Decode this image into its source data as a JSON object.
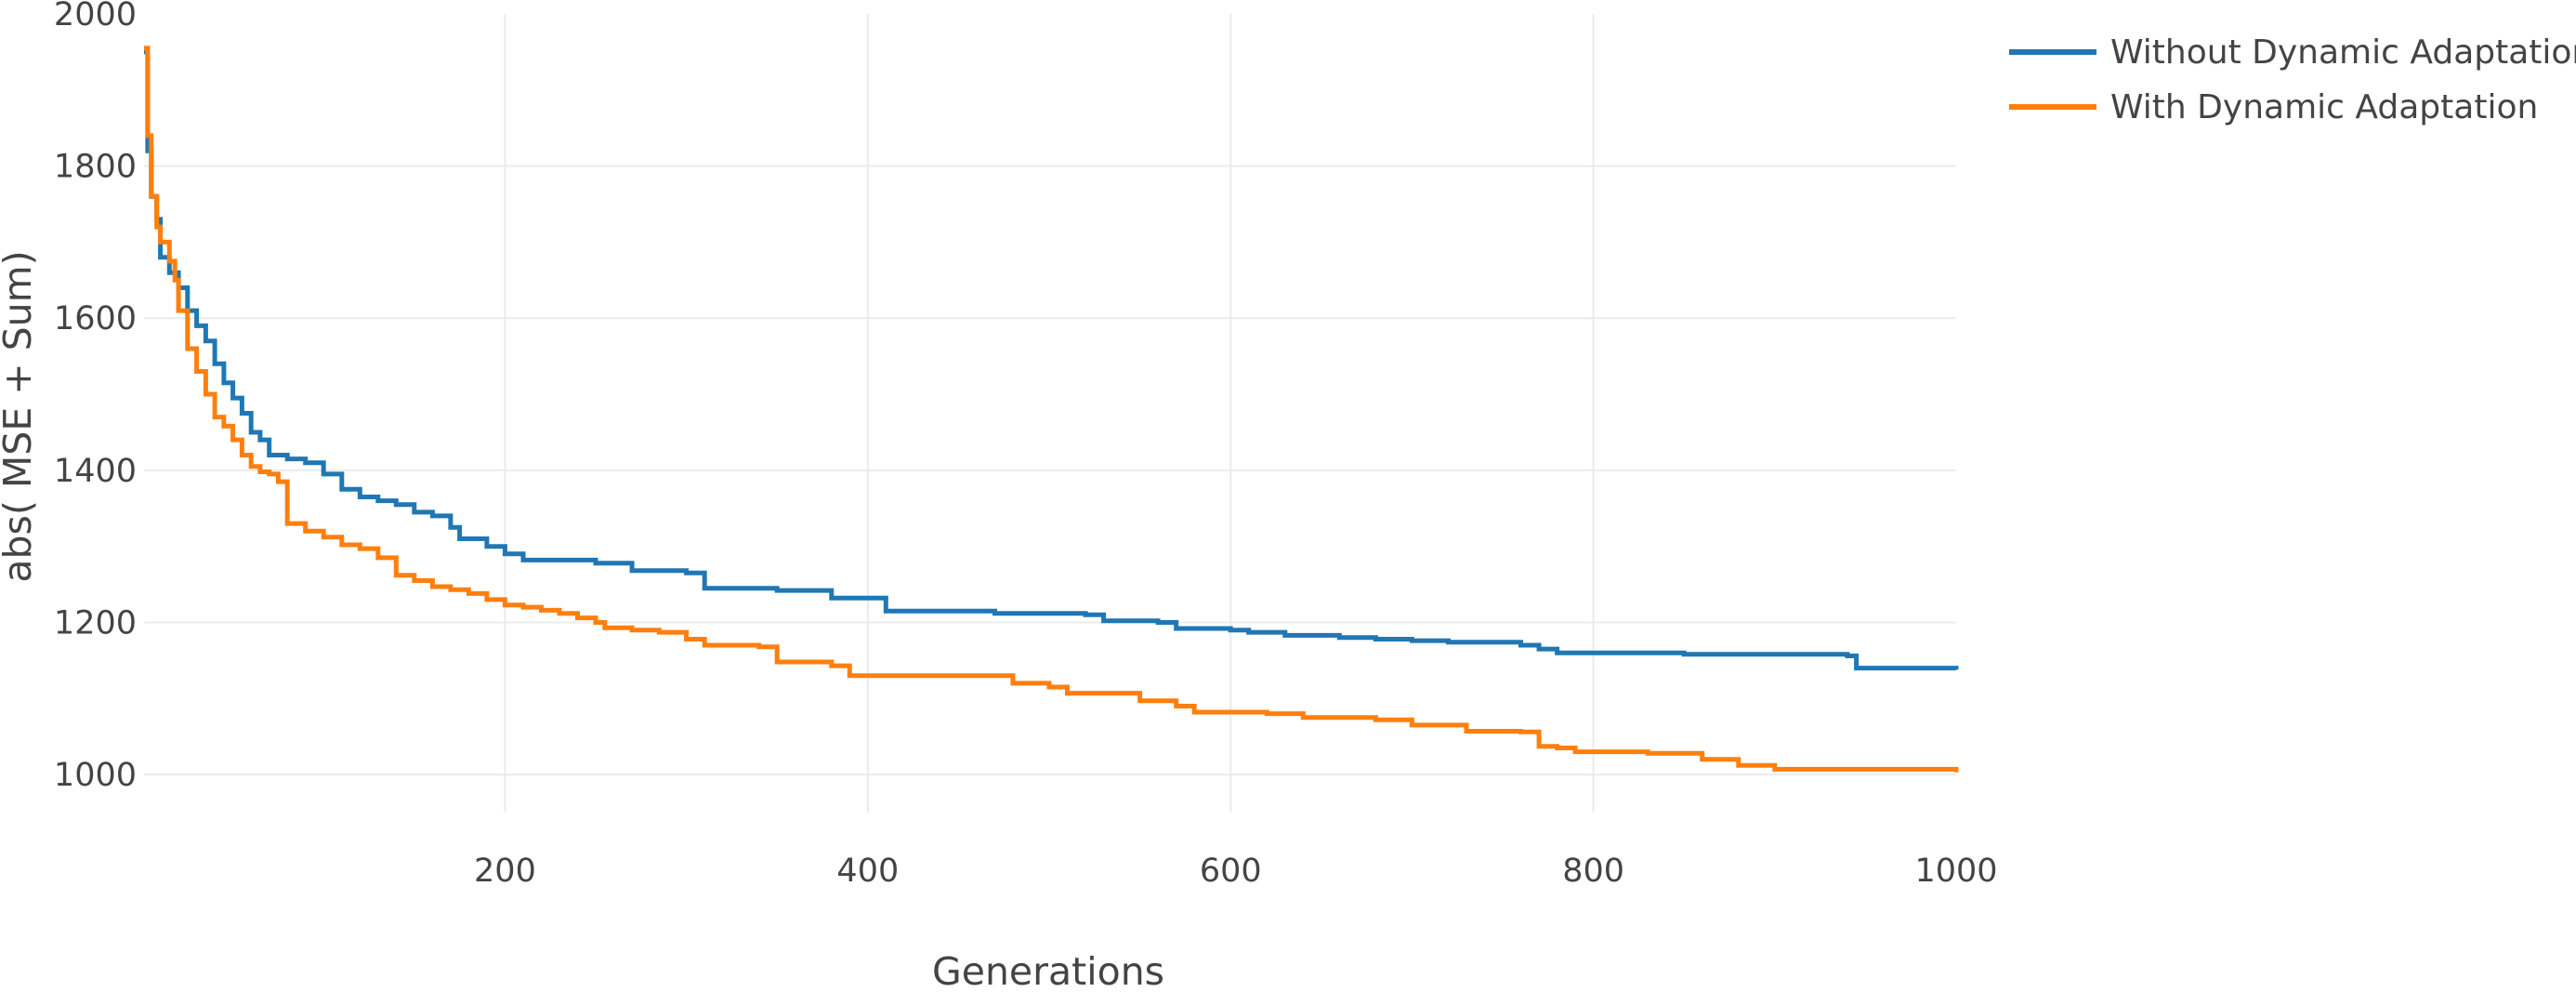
{
  "chart_data": {
    "type": "line",
    "title": "",
    "xlabel": "Generations",
    "ylabel": "abs( MSE + Sum)",
    "xlim": [
      1,
      1000
    ],
    "ylim": [
      950,
      2000
    ],
    "x_ticks": [
      200,
      400,
      600,
      800,
      1000
    ],
    "y_ticks": [
      1000,
      1200,
      1400,
      1600,
      1800,
      2000
    ],
    "x_tick_labels": [
      "200",
      "400",
      "600",
      "800",
      "1000"
    ],
    "y_tick_labels": [
      "1000",
      "1200",
      "1400",
      "1600",
      "1800",
      "2000"
    ],
    "grid": true,
    "legend_position": "top-right",
    "line_shape": "step",
    "series": [
      {
        "name": "Without Dynamic Adaptation",
        "color": "#1f77b4",
        "points": [
          [
            1,
            1950
          ],
          [
            3,
            1820
          ],
          [
            5,
            1760
          ],
          [
            8,
            1730
          ],
          [
            10,
            1680
          ],
          [
            15,
            1660
          ],
          [
            20,
            1640
          ],
          [
            25,
            1610
          ],
          [
            30,
            1590
          ],
          [
            35,
            1570
          ],
          [
            40,
            1540
          ],
          [
            45,
            1515
          ],
          [
            50,
            1495
          ],
          [
            55,
            1475
          ],
          [
            60,
            1450
          ],
          [
            65,
            1440
          ],
          [
            70,
            1420
          ],
          [
            80,
            1415
          ],
          [
            90,
            1410
          ],
          [
            100,
            1395
          ],
          [
            110,
            1375
          ],
          [
            120,
            1365
          ],
          [
            130,
            1360
          ],
          [
            140,
            1355
          ],
          [
            150,
            1345
          ],
          [
            160,
            1340
          ],
          [
            170,
            1325
          ],
          [
            175,
            1310
          ],
          [
            190,
            1300
          ],
          [
            200,
            1290
          ],
          [
            210,
            1282
          ],
          [
            250,
            1278
          ],
          [
            270,
            1268
          ],
          [
            300,
            1265
          ],
          [
            310,
            1245
          ],
          [
            350,
            1242
          ],
          [
            380,
            1232
          ],
          [
            410,
            1215
          ],
          [
            470,
            1212
          ],
          [
            520,
            1210
          ],
          [
            530,
            1202
          ],
          [
            560,
            1200
          ],
          [
            570,
            1192
          ],
          [
            600,
            1190
          ],
          [
            610,
            1187
          ],
          [
            630,
            1183
          ],
          [
            660,
            1180
          ],
          [
            680,
            1178
          ],
          [
            700,
            1176
          ],
          [
            720,
            1174
          ],
          [
            760,
            1170
          ],
          [
            770,
            1165
          ],
          [
            780,
            1160
          ],
          [
            850,
            1158
          ],
          [
            940,
            1156
          ],
          [
            945,
            1140
          ],
          [
            1000,
            1138
          ]
        ]
      },
      {
        "name": "With Dynamic Adaptation",
        "color": "#ff7f0e",
        "points": [
          [
            1,
            1955
          ],
          [
            3,
            1840
          ],
          [
            5,
            1760
          ],
          [
            8,
            1720
          ],
          [
            10,
            1700
          ],
          [
            15,
            1675
          ],
          [
            18,
            1650
          ],
          [
            20,
            1610
          ],
          [
            25,
            1560
          ],
          [
            30,
            1530
          ],
          [
            35,
            1500
          ],
          [
            40,
            1470
          ],
          [
            45,
            1458
          ],
          [
            50,
            1440
          ],
          [
            55,
            1420
          ],
          [
            60,
            1405
          ],
          [
            65,
            1398
          ],
          [
            70,
            1395
          ],
          [
            75,
            1385
          ],
          [
            80,
            1330
          ],
          [
            90,
            1320
          ],
          [
            100,
            1312
          ],
          [
            110,
            1302
          ],
          [
            120,
            1297
          ],
          [
            130,
            1285
          ],
          [
            140,
            1262
          ],
          [
            150,
            1255
          ],
          [
            160,
            1247
          ],
          [
            170,
            1243
          ],
          [
            180,
            1238
          ],
          [
            190,
            1230
          ],
          [
            200,
            1223
          ],
          [
            210,
            1220
          ],
          [
            220,
            1216
          ],
          [
            230,
            1212
          ],
          [
            240,
            1206
          ],
          [
            250,
            1200
          ],
          [
            255,
            1193
          ],
          [
            270,
            1190
          ],
          [
            285,
            1187
          ],
          [
            300,
            1178
          ],
          [
            310,
            1170
          ],
          [
            340,
            1168
          ],
          [
            350,
            1148
          ],
          [
            380,
            1143
          ],
          [
            390,
            1130
          ],
          [
            470,
            1130
          ],
          [
            480,
            1120
          ],
          [
            500,
            1115
          ],
          [
            510,
            1107
          ],
          [
            550,
            1097
          ],
          [
            570,
            1090
          ],
          [
            580,
            1082
          ],
          [
            620,
            1080
          ],
          [
            640,
            1075
          ],
          [
            680,
            1072
          ],
          [
            700,
            1065
          ],
          [
            730,
            1057
          ],
          [
            760,
            1056
          ],
          [
            770,
            1037
          ],
          [
            780,
            1035
          ],
          [
            790,
            1030
          ],
          [
            830,
            1028
          ],
          [
            860,
            1020
          ],
          [
            880,
            1012
          ],
          [
            900,
            1007
          ],
          [
            990,
            1007
          ],
          [
            1000,
            1003
          ]
        ]
      }
    ]
  }
}
